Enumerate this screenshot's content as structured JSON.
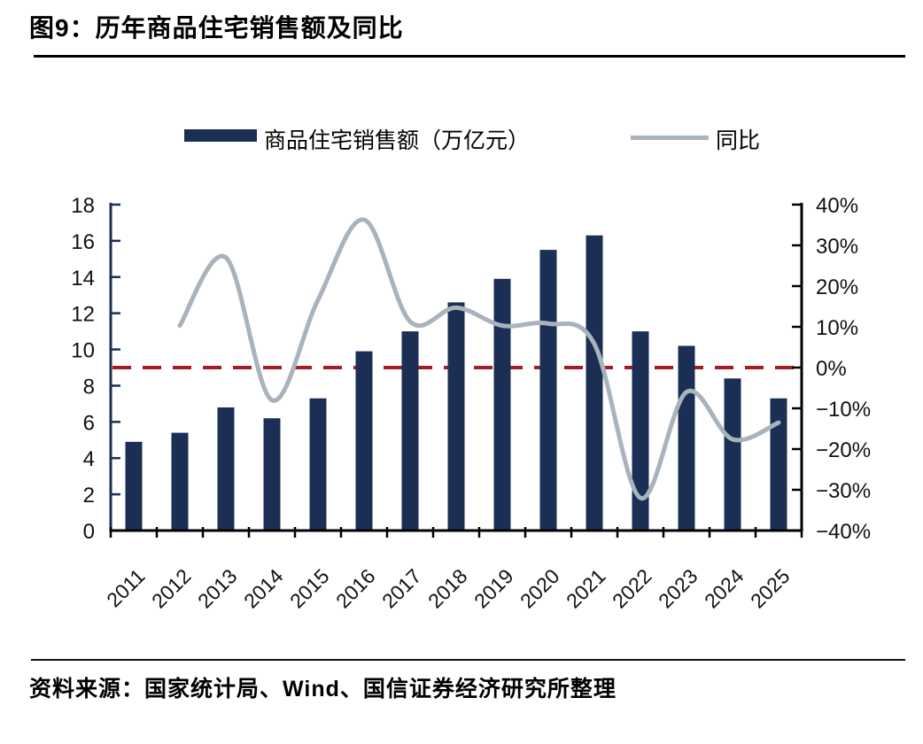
{
  "figure": {
    "title": "图9：历年商品住宅销售额及同比",
    "source": "资料来源：国家统计局、Wind、国信证券经济研究所整理"
  },
  "legend": {
    "bar_label": "商品住宅销售额（万亿元）",
    "line_label": "同比"
  },
  "colors": {
    "bar": "#1b2f55",
    "line": "#a9b3bd",
    "zero_line": "#a61c23",
    "left_axis": "#1b3055",
    "right_axis": "#000000"
  },
  "chart_data": {
    "type": "bar",
    "subtype": "dual-axis bar + smooth line",
    "title": "历年商品住宅销售额及同比",
    "categories": [
      "2011",
      "2012",
      "2013",
      "2014",
      "2015",
      "2016",
      "2017",
      "2018",
      "2019",
      "2020",
      "2021",
      "2022",
      "2023",
      "2024",
      "2025"
    ],
    "series": [
      {
        "name": "商品住宅销售额（万亿元）",
        "type": "bar",
        "axis": "left",
        "unit": "万亿元",
        "values": [
          4.9,
          5.4,
          6.8,
          6.2,
          7.3,
          9.9,
          11.0,
          12.6,
          13.9,
          15.5,
          16.3,
          11.0,
          10.2,
          8.4,
          7.3
        ]
      },
      {
        "name": "同比",
        "type": "line",
        "axis": "right",
        "unit": "%",
        "values": [
          null,
          10.3,
          27.0,
          -8.0,
          16.6,
          36.3,
          11.3,
          14.7,
          10.3,
          10.8,
          5.8,
          -32.0,
          -6.0,
          -17.6,
          -13.5
        ]
      }
    ],
    "left_axis": {
      "min": 0,
      "max": 18,
      "step": 2,
      "tick_labels": [
        "18",
        "16",
        "14",
        "12",
        "10",
        "8",
        "6",
        "4",
        "2",
        "0"
      ]
    },
    "right_axis": {
      "min": -40,
      "max": 40,
      "step": 10,
      "tick_labels": [
        "40%",
        "30%",
        "20%",
        "10%",
        "0%",
        "−10%",
        "−20%",
        "−30%",
        "−40%"
      ]
    },
    "zero_reference_line": {
      "right_axis_value": 0,
      "style": "dashed",
      "color": "#a61c23"
    },
    "legend_position": "top-center",
    "grid": false,
    "x_label_rotation_deg": -45
  }
}
